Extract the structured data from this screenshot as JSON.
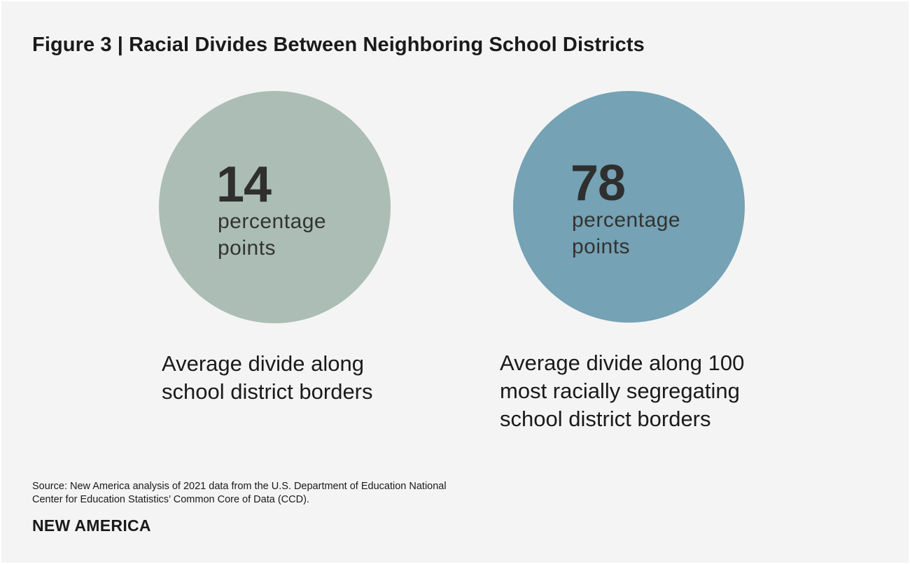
{
  "title": "Figure 3 | Racial Divides Between Neighboring School Districts",
  "chart_data": {
    "type": "table",
    "unit": "percentage points",
    "items": [
      {
        "value": 14,
        "value_label": "14",
        "unit_label": "percentage points",
        "caption": "Average divide along school district borders",
        "color": "#abbdb4"
      },
      {
        "value": 78,
        "value_label": "78",
        "unit_label": "percentage points",
        "caption": "Average divide along 100 most racially segregating school district borders",
        "color": "#75a2b4"
      }
    ]
  },
  "source": "Source: New America analysis of 2021 data from the U.S. Department of Education National Center for Education Statistics’ Common Core of Data (CCD).",
  "brand": "NEW AMERICA"
}
